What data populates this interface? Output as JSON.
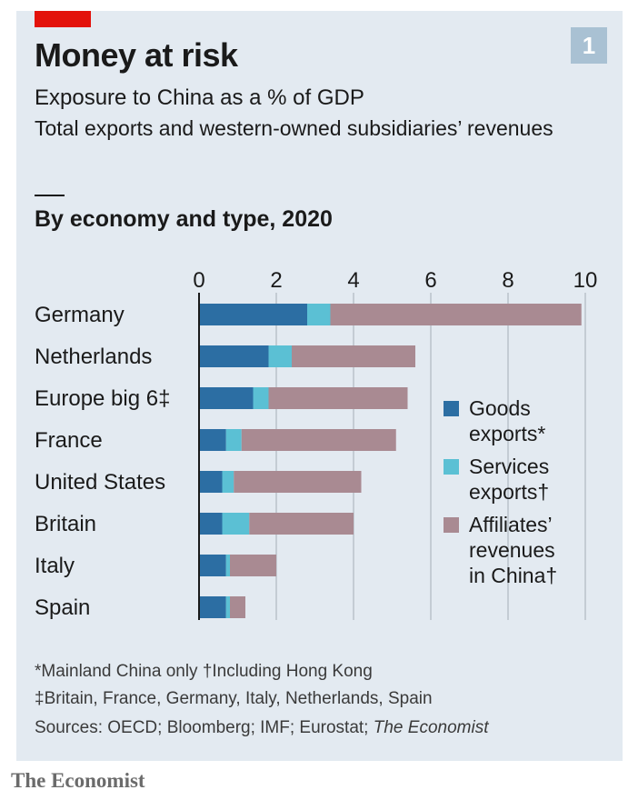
{
  "header": {
    "badge_number": "1",
    "title": "Money at risk",
    "subtitle": "Exposure to China as a % of GDP",
    "subtitle2": "Total exports and western-owned subsidiaries’ revenues",
    "section_title": "By economy and type, 2020"
  },
  "colors": {
    "panel": "#e3eaf1",
    "accent_red": "#e3120b",
    "goods": "#2c6ea3",
    "services": "#5bc0d4",
    "affiliates": "#a98a92",
    "gridline": "#b9c2cb"
  },
  "chart_data": {
    "type": "bar",
    "orientation": "horizontal",
    "stacked": true,
    "categories": [
      "Germany",
      "Netherlands",
      "Europe big 6‡",
      "France",
      "United States",
      "Britain",
      "Italy",
      "Spain"
    ],
    "series": [
      {
        "name": "Goods exports*",
        "values": [
          2.8,
          1.8,
          1.4,
          0.7,
          0.6,
          0.6,
          0.7,
          0.7
        ]
      },
      {
        "name": "Services exports†",
        "values": [
          0.6,
          0.6,
          0.4,
          0.4,
          0.3,
          0.7,
          0.1,
          0.1
        ]
      },
      {
        "name": "Affiliates’ revenues in China†",
        "values": [
          6.5,
          3.2,
          3.6,
          4.0,
          3.3,
          2.7,
          1.2,
          0.4
        ]
      }
    ],
    "xlim": [
      0,
      10
    ],
    "xticks": [
      "0",
      "2",
      "4",
      "6",
      "8",
      "10"
    ],
    "grid": true,
    "legend_position": "right"
  },
  "legend": [
    {
      "label": "Goods\nexports*"
    },
    {
      "label": "Services\nexports†"
    },
    {
      "label": "Affiliates’\nrevenues\nin China†"
    }
  ],
  "footnotes": {
    "note1": "*Mainland China only    †Including Hong Kong",
    "note2": "‡Britain, France, Germany, Italy, Netherlands, Spain",
    "sources": "Sources: OECD; Bloomberg; IMF; Eurostat; ",
    "sources_italic": "The Economist"
  },
  "brand": "The Economist"
}
